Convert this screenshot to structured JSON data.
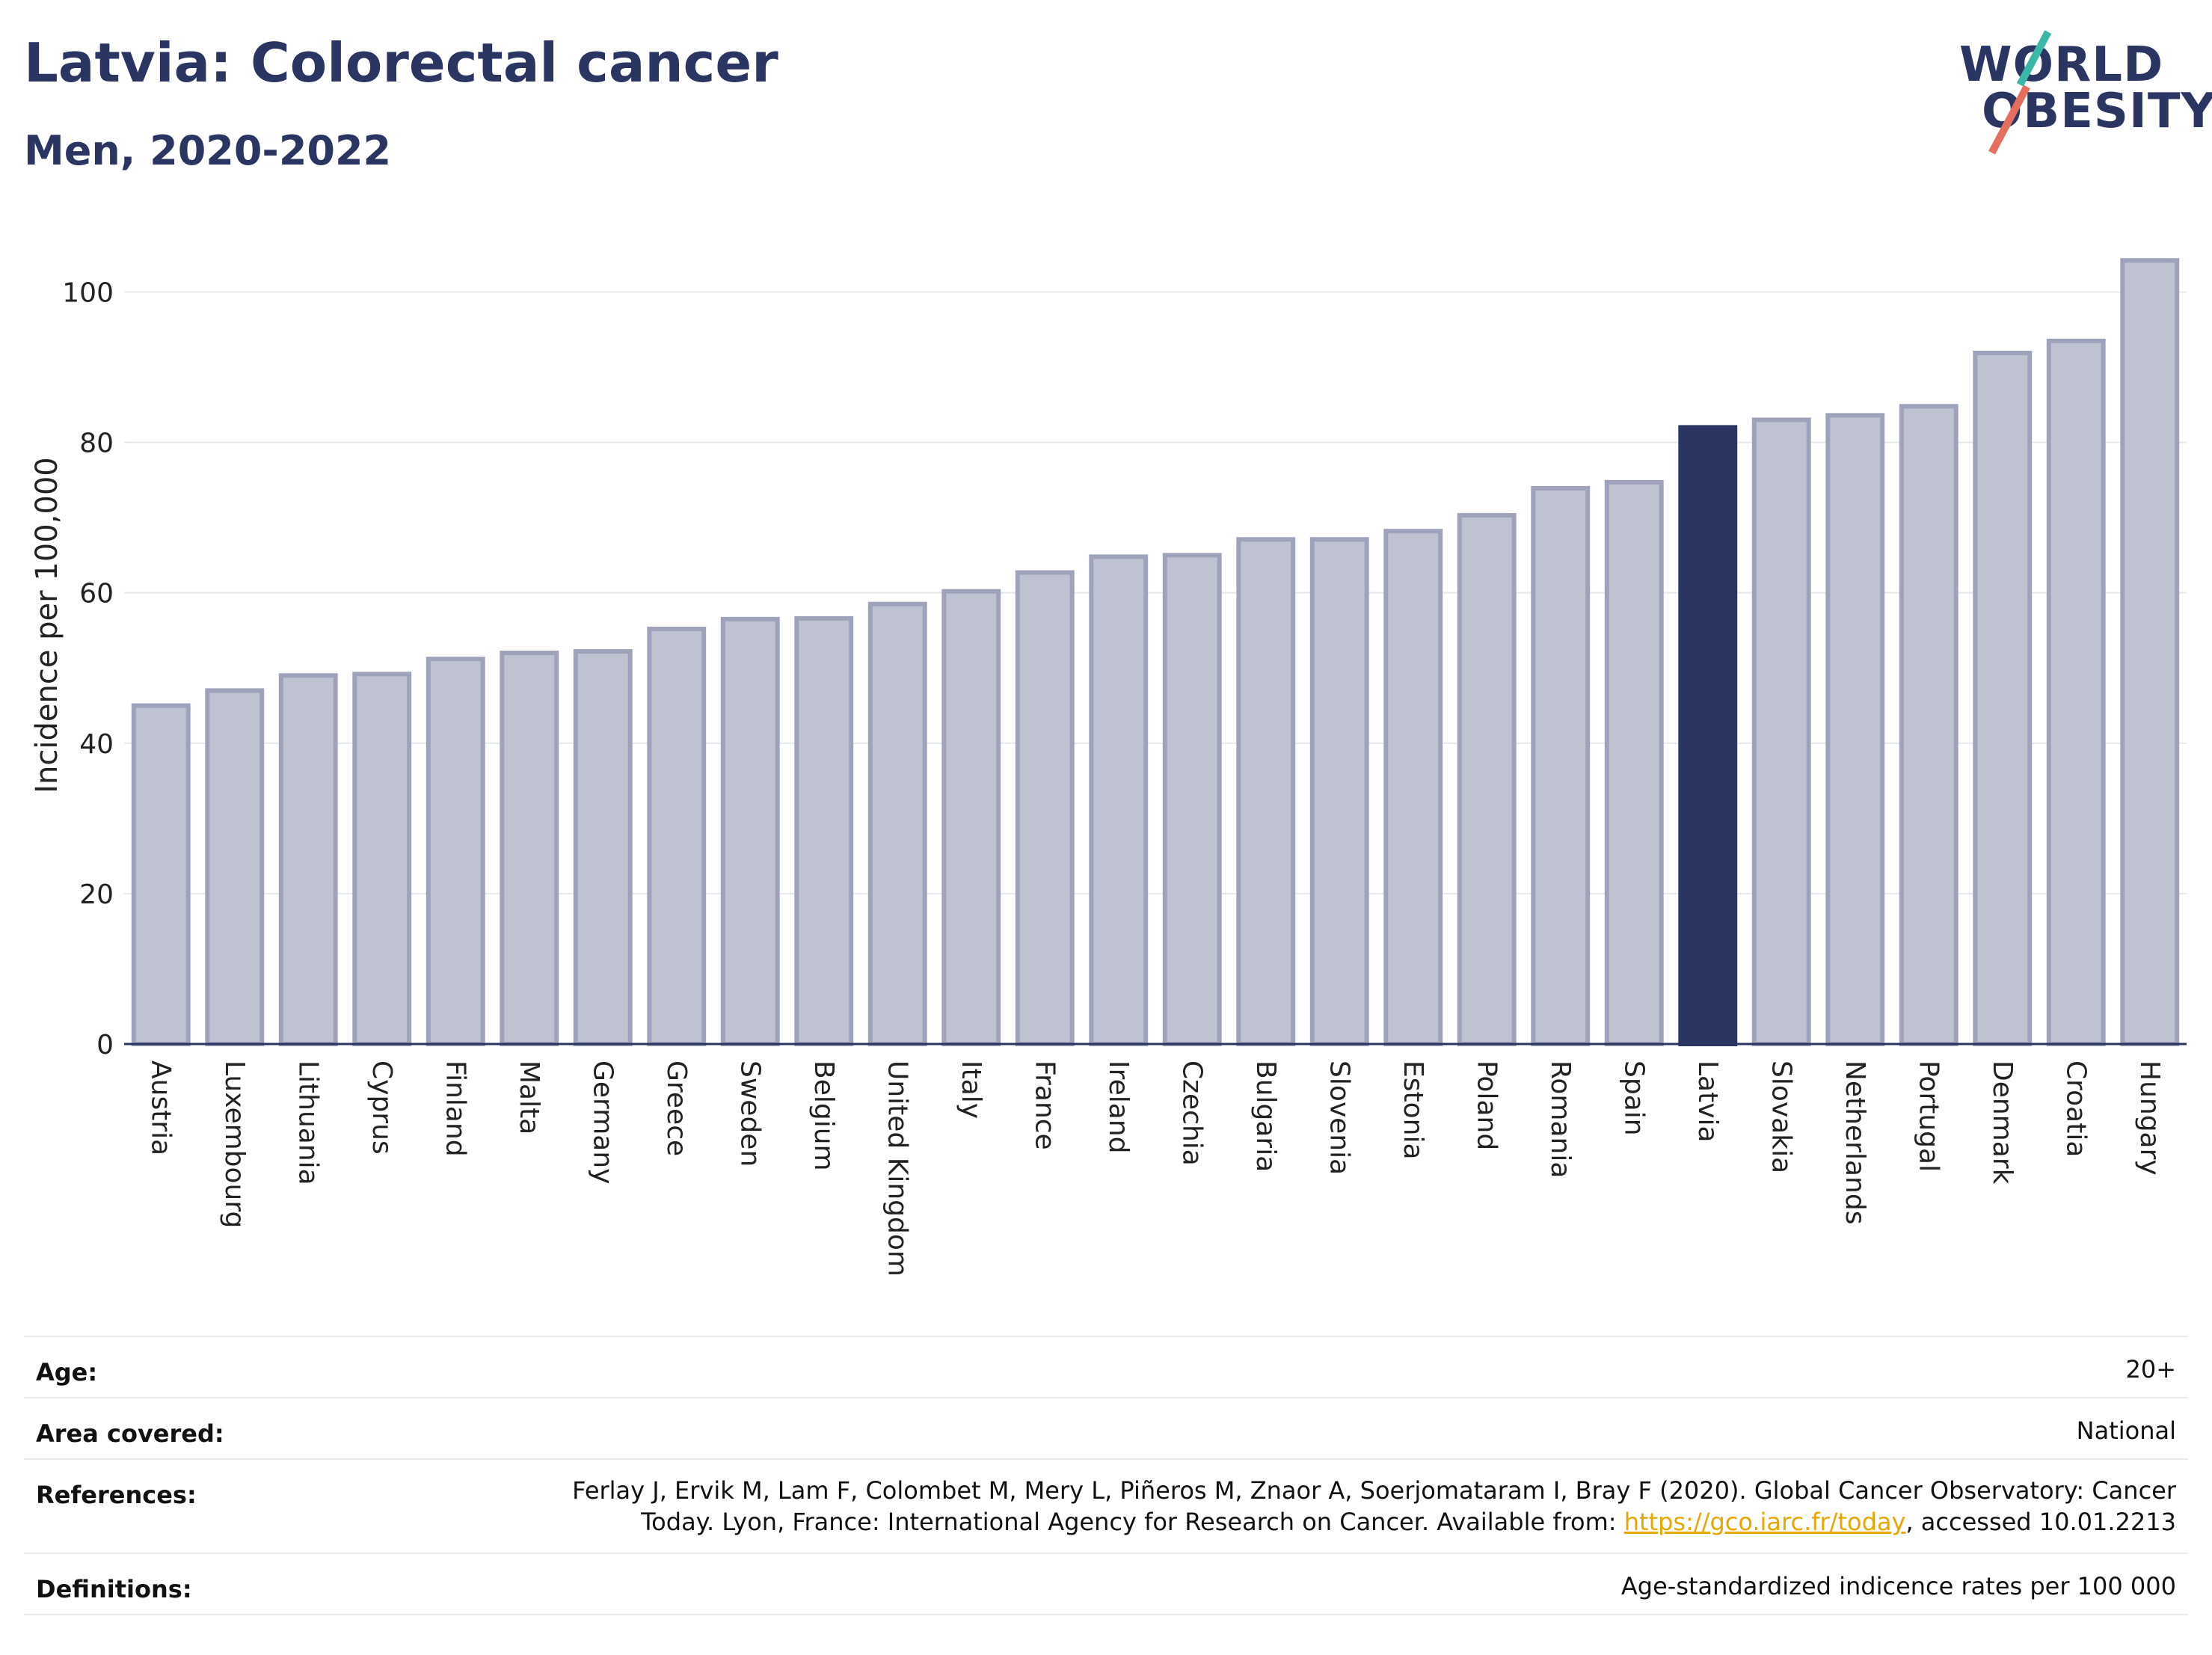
{
  "header": {
    "title": "Latvia: Colorectal cancer",
    "subtitle": "Men, 2020-2022"
  },
  "logo": {
    "line1": "WORLD",
    "line2": "OBESITY",
    "accent_top": "#3bb7a7",
    "accent_bottom": "#e56e5e"
  },
  "colors": {
    "bar": "#bfc2d0",
    "bar_border": "#9ea3bb",
    "highlight": "#2b3562",
    "grid": "#e6e8ee"
  },
  "chart_data": {
    "type": "bar",
    "ylabel": "Incidence per 100,000",
    "ylim": [
      0,
      108
    ],
    "yticks": [
      0,
      20,
      40,
      60,
      80,
      100
    ],
    "grid": true,
    "highlight": "Latvia",
    "categories": [
      "Austria",
      "Luxembourg",
      "Lithuania",
      "Cyprus",
      "Finland",
      "Malta",
      "Germany",
      "Greece",
      "Sweden",
      "Belgium",
      "United Kingdom",
      "Italy",
      "France",
      "Ireland",
      "Czechia",
      "Bulgaria",
      "Slovenia",
      "Estonia",
      "Poland",
      "Romania",
      "Spain",
      "Latvia",
      "Slovakia",
      "Netherlands",
      "Portugal",
      "Denmark",
      "Croatia",
      "Hungary"
    ],
    "values": [
      45.0,
      47.0,
      49.0,
      49.2,
      51.2,
      52.0,
      52.2,
      55.2,
      56.5,
      56.6,
      58.5,
      60.2,
      62.7,
      64.8,
      65.0,
      67.1,
      67.1,
      68.2,
      70.3,
      73.9,
      74.7,
      82.0,
      83.0,
      83.6,
      84.8,
      91.9,
      93.5,
      104.2
    ]
  },
  "meta": {
    "age_label": "Age:",
    "age_value": "20+",
    "area_label": "Area covered:",
    "area_value": "National",
    "references_label": "References:",
    "references_line1": "Ferlay J, Ervik M, Lam F, Colombet M, Mery L, Piñeros M, Znaor A, Soerjomataram I, Bray F (2020). Global Cancer Observatory: Cancer",
    "references_line2_pre": "Today. Lyon, France: International Agency for Research on Cancer. Available from: ",
    "references_link": "https://gco.iarc.fr/today",
    "references_line2_post": ", accessed 10.01.2213",
    "definitions_label": "Definitions:",
    "definitions_value": "Age-standardized indicence rates per 100 000"
  }
}
